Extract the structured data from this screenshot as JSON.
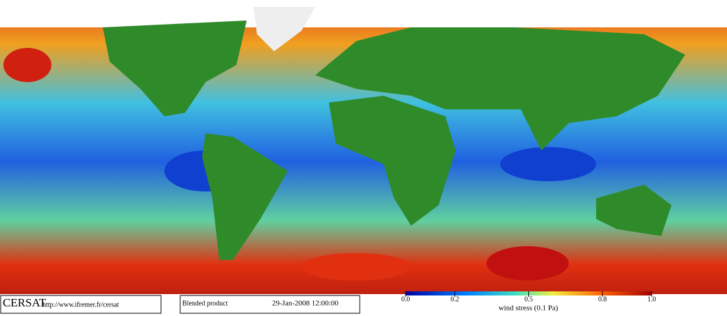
{
  "footer": {
    "logo": "CERSAT",
    "url": "http://www.ifremer.fr/cersat",
    "product": "Blended product",
    "date": "29-Jan-2008 12:00:00"
  },
  "colorbar": {
    "label": "wind stress (0.1 Pa)",
    "lim": [
      0,
      1
    ],
    "ticks": [
      {
        "value": 0,
        "label": "0.0"
      },
      0.2,
      0.5,
      0.8,
      {
        "value": 1,
        "label": "1.0"
      }
    ]
  }
}
